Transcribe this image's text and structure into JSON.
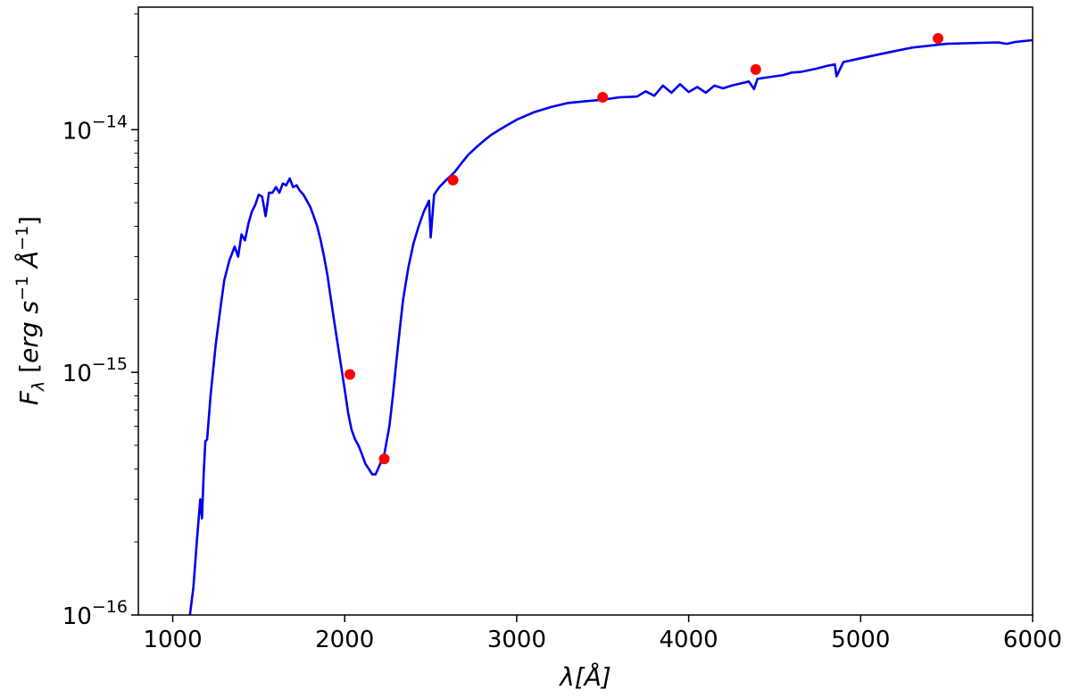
{
  "chart_data": {
    "type": "line",
    "title": "",
    "xlabel": "λ[Å]",
    "ylabel": "F_λ [erg s⁻¹ Å⁻¹]",
    "ylabel_parts": {
      "symbol": "F",
      "symbol_sub": "λ",
      "open": " [",
      "erg": "erg",
      "s": " s",
      "s_exp": "−1",
      "ang": " Å",
      "ang_exp": "−1",
      "close": "]"
    },
    "xlim": [
      800,
      6000
    ],
    "ylim": [
      1e-16,
      3.2e-14
    ],
    "yscale": "log",
    "grid": false,
    "x_ticks": [
      {
        "value": 1000,
        "label": "1000"
      },
      {
        "value": 2000,
        "label": "2000"
      },
      {
        "value": 3000,
        "label": "3000"
      },
      {
        "value": 4000,
        "label": "4000"
      },
      {
        "value": 5000,
        "label": "5000"
      },
      {
        "value": 6000,
        "label": "6000"
      }
    ],
    "y_ticks": [
      {
        "value": 1e-16,
        "base": "10",
        "exp": "−16"
      },
      {
        "value": 1e-15,
        "base": "10",
        "exp": "−15"
      },
      {
        "value": 1e-14,
        "base": "10",
        "exp": "−14"
      }
    ],
    "series": [
      {
        "kind": "line",
        "color": "#0000ee",
        "x": [
          1100,
          1120,
          1140,
          1160,
          1170,
          1180,
          1190,
          1200,
          1220,
          1250,
          1280,
          1300,
          1330,
          1360,
          1380,
          1400,
          1420,
          1440,
          1460,
          1480,
          1500,
          1520,
          1540,
          1560,
          1580,
          1600,
          1620,
          1640,
          1660,
          1680,
          1700,
          1720,
          1740,
          1760,
          1780,
          1800,
          1820,
          1840,
          1860,
          1880,
          1900,
          1920,
          1940,
          1960,
          1980,
          2000,
          2020,
          2040,
          2060,
          2080,
          2100,
          2120,
          2140,
          2160,
          2180,
          2200,
          2230,
          2260,
          2280,
          2300,
          2320,
          2340,
          2370,
          2400,
          2430,
          2460,
          2490,
          2500,
          2520,
          2550,
          2580,
          2600,
          2640,
          2680,
          2720,
          2760,
          2800,
          2850,
          2900,
          2950,
          3000,
          3100,
          3200,
          3300,
          3400,
          3500,
          3600,
          3700,
          3750,
          3800,
          3850,
          3900,
          3950,
          4000,
          4050,
          4100,
          4150,
          4200,
          4250,
          4300,
          4350,
          4380,
          4400,
          4450,
          4500,
          4550,
          4600,
          4650,
          4700,
          4750,
          4800,
          4850,
          4860,
          4900,
          5000,
          5100,
          5200,
          5300,
          5400,
          5500,
          5600,
          5700,
          5800,
          5850,
          5900,
          6000
        ],
        "y": [
          1e-16,
          1.3e-16,
          2e-16,
          3e-16,
          2.5e-16,
          3.8e-16,
          5.2e-16,
          5.3e-16,
          8e-16,
          1.3e-15,
          1.9e-15,
          2.4e-15,
          2.9e-15,
          3.3e-15,
          3e-15,
          3.7e-15,
          3.5e-15,
          4.1e-15,
          4.6e-15,
          4.9e-15,
          5.4e-15,
          5.3e-15,
          4.4e-15,
          5.5e-15,
          5.5e-15,
          5.8e-15,
          5.5e-15,
          6e-15,
          5.9e-15,
          6.3e-15,
          5.8e-15,
          5.9e-15,
          5.6e-15,
          5.4e-15,
          5.1e-15,
          4.8e-15,
          4.4e-15,
          4e-15,
          3.5e-15,
          3e-15,
          2.5e-15,
          2e-15,
          1.6e-15,
          1.3e-15,
          1.05e-15,
          8.5e-16,
          6.8e-16,
          5.8e-16,
          5.3e-16,
          5e-16,
          4.6e-16,
          4.2e-16,
          4e-16,
          3.8e-16,
          3.8e-16,
          4.1e-16,
          4.6e-16,
          6e-16,
          8e-16,
          1.1e-15,
          1.5e-15,
          2e-15,
          2.7e-15,
          3.4e-15,
          4e-15,
          4.6e-15,
          5.1e-15,
          3.6e-15,
          5.4e-15,
          5.8e-15,
          6.1e-15,
          6.3e-15,
          6.7e-15,
          7.3e-15,
          7.9e-15,
          8.4e-15,
          8.9e-15,
          9.5e-15,
          1e-14,
          1.05e-14,
          1.1e-14,
          1.18e-14,
          1.24e-14,
          1.29e-14,
          1.31e-14,
          1.33e-14,
          1.36e-14,
          1.37e-14,
          1.44e-14,
          1.38e-14,
          1.52e-14,
          1.42e-14,
          1.54e-14,
          1.43e-14,
          1.5e-14,
          1.42e-14,
          1.52e-14,
          1.48e-14,
          1.52e-14,
          1.55e-14,
          1.58e-14,
          1.47e-14,
          1.62e-14,
          1.64e-14,
          1.66e-14,
          1.68e-14,
          1.72e-14,
          1.73e-14,
          1.76e-14,
          1.79e-14,
          1.83e-14,
          1.86e-14,
          1.66e-14,
          1.9e-14,
          1.97e-14,
          2.04e-14,
          2.11e-14,
          2.18e-14,
          2.22e-14,
          2.26e-14,
          2.27e-14,
          2.28e-14,
          2.29e-14,
          2.26e-14,
          2.3e-14,
          2.34e-14
        ]
      },
      {
        "kind": "scatter",
        "color": "#ff0000",
        "x": [
          2030,
          2230,
          2630,
          3500,
          4390,
          5450
        ],
        "y": [
          9.8e-16,
          4.4e-16,
          6.2e-15,
          1.36e-14,
          1.77e-14,
          2.38e-14
        ]
      }
    ]
  }
}
